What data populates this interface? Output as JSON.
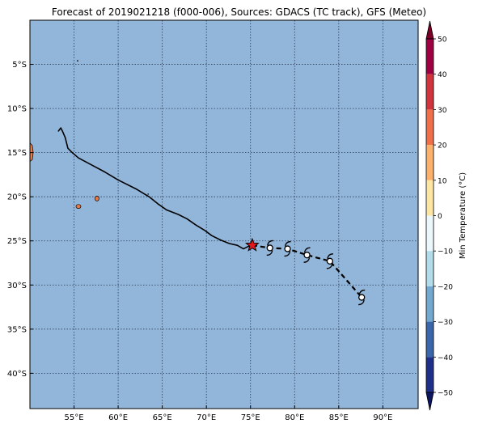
{
  "title": "Forecast of 2019021218 (f000-006), Sources: GDACS (TC track), GFS (Meteo)",
  "map": {
    "lon_range": [
      50,
      94
    ],
    "lat_range": [
      -44,
      0
    ],
    "lon_ticks": [
      {
        "value": 55,
        "label": "55°E"
      },
      {
        "value": 60,
        "label": "60°E"
      },
      {
        "value": 65,
        "label": "65°E"
      },
      {
        "value": 70,
        "label": "70°E"
      },
      {
        "value": 75,
        "label": "75°E"
      },
      {
        "value": 80,
        "label": "80°E"
      },
      {
        "value": 85,
        "label": "85°E"
      },
      {
        "value": 90,
        "label": "90°E"
      }
    ],
    "lat_ticks": [
      {
        "value": -5,
        "label": "5°S"
      },
      {
        "value": -10,
        "label": "10°S"
      },
      {
        "value": -15,
        "label": "15°S"
      },
      {
        "value": -20,
        "label": "20°S"
      },
      {
        "value": -25,
        "label": "25°S"
      },
      {
        "value": -30,
        "label": "30°S"
      },
      {
        "value": -35,
        "label": "35°S"
      },
      {
        "value": -40,
        "label": "40°S"
      }
    ],
    "grid": "dotted",
    "ocean_color": "#92b6da",
    "island_color": "#e87a45",
    "track_past": [
      [
        53.2,
        -12.6
      ],
      [
        53.5,
        -12.2
      ],
      [
        53.7,
        -12.6
      ],
      [
        54.0,
        -13.3
      ],
      [
        54.3,
        -14.5
      ],
      [
        54.8,
        -15.0
      ],
      [
        55.5,
        -15.6
      ],
      [
        57.0,
        -16.4
      ],
      [
        58.5,
        -17.2
      ],
      [
        60.0,
        -18.1
      ],
      [
        62.0,
        -19.1
      ],
      [
        63.5,
        -20.0
      ],
      [
        64.5,
        -20.8
      ],
      [
        65.5,
        -21.5
      ],
      [
        66.8,
        -22.0
      ],
      [
        67.8,
        -22.5
      ],
      [
        68.8,
        -23.2
      ],
      [
        69.8,
        -23.8
      ],
      [
        70.6,
        -24.4
      ],
      [
        71.6,
        -24.9
      ],
      [
        72.6,
        -25.3
      ],
      [
        73.5,
        -25.5
      ],
      [
        74.2,
        -25.9
      ],
      [
        75.0,
        -25.5
      ]
    ],
    "current_position": [
      75.2,
      -25.5
    ],
    "forecast_positions": [
      [
        77.2,
        -25.8
      ],
      [
        79.2,
        -25.9
      ],
      [
        81.4,
        -26.6
      ],
      [
        84.0,
        -27.3
      ],
      [
        87.6,
        -31.4
      ]
    ]
  },
  "colorbar": {
    "label": "Min Temperature (°C)",
    "range": [
      -50,
      50
    ],
    "ticks": [
      "50",
      "40",
      "30",
      "20",
      "10",
      "0",
      "−10",
      "−20",
      "−30",
      "−40",
      "−50"
    ],
    "levels": [
      {
        "from": 40,
        "to": 50,
        "color": "#9e0142"
      },
      {
        "from": 30,
        "to": 40,
        "color": "#d0343c"
      },
      {
        "from": 20,
        "to": 30,
        "color": "#ef6f4a"
      },
      {
        "from": 10,
        "to": 20,
        "color": "#fbb06c"
      },
      {
        "from": 0,
        "to": 10,
        "color": "#fde6a4"
      },
      {
        "from": -10,
        "to": 0,
        "color": "#ecf7fb"
      },
      {
        "from": -20,
        "to": -10,
        "color": "#b3dcea"
      },
      {
        "from": -30,
        "to": -20,
        "color": "#74a9cf"
      },
      {
        "from": -40,
        "to": -30,
        "color": "#3c66aa"
      },
      {
        "from": -50,
        "to": -40,
        "color": "#1f2f87"
      }
    ],
    "upper_extension_color": "#7a0026",
    "lower_extension_color": "#0d1760"
  }
}
